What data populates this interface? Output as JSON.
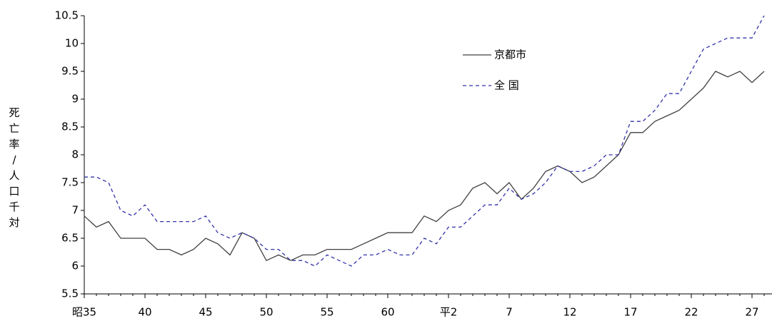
{
  "chart_data": {
    "type": "line",
    "y_label": "死亡率/人口千対",
    "categories": [
      "昭35",
      null,
      null,
      null,
      null,
      "40",
      null,
      null,
      null,
      null,
      "45",
      null,
      null,
      null,
      null,
      "50",
      null,
      null,
      null,
      null,
      "55",
      null,
      null,
      null,
      null,
      "60",
      null,
      null,
      null,
      null,
      "平2",
      null,
      null,
      null,
      null,
      "7",
      null,
      null,
      null,
      null,
      "12",
      null,
      null,
      null,
      null,
      "17",
      null,
      null,
      null,
      null,
      "22",
      null,
      null,
      null,
      null,
      "27",
      null
    ],
    "series": [
      {
        "name": "京都市",
        "color": "#404040",
        "dash": false,
        "values": [
          6.9,
          6.7,
          6.8,
          6.5,
          6.5,
          6.5,
          6.3,
          6.3,
          6.2,
          6.3,
          6.5,
          6.4,
          6.2,
          6.6,
          6.5,
          6.1,
          6.2,
          6.1,
          6.2,
          6.2,
          6.3,
          6.3,
          6.3,
          6.4,
          6.5,
          6.6,
          6.6,
          6.6,
          6.9,
          6.8,
          7.0,
          7.1,
          7.4,
          7.5,
          7.3,
          7.5,
          7.2,
          7.4,
          7.7,
          7.8,
          7.7,
          7.5,
          7.6,
          7.8,
          8.0,
          8.4,
          8.4,
          8.6,
          8.7,
          8.8,
          9.0,
          9.2,
          9.5,
          9.4,
          9.5,
          9.3,
          9.5
        ]
      },
      {
        "name": "全 国",
        "color": "#3333aa",
        "dash": true,
        "values": [
          7.6,
          7.6,
          7.5,
          7.0,
          6.9,
          7.1,
          6.8,
          6.8,
          6.8,
          6.8,
          6.9,
          6.6,
          6.5,
          6.6,
          6.5,
          6.3,
          6.3,
          6.1,
          6.1,
          6.0,
          6.2,
          6.1,
          6.0,
          6.2,
          6.2,
          6.3,
          6.2,
          6.2,
          6.5,
          6.4,
          6.7,
          6.7,
          6.9,
          7.1,
          7.1,
          7.4,
          7.2,
          7.3,
          7.5,
          7.8,
          7.7,
          7.7,
          7.8,
          8.0,
          8.0,
          8.6,
          8.6,
          8.8,
          9.1,
          9.1,
          9.5,
          9.9,
          10.0,
          10.1,
          10.1,
          10.1,
          10.5
        ]
      }
    ],
    "ylim": [
      5.5,
      10.5
    ],
    "yticks": [
      5.5,
      6,
      6.5,
      7,
      7.5,
      8,
      8.5,
      9,
      9.5,
      10,
      10.5
    ]
  }
}
